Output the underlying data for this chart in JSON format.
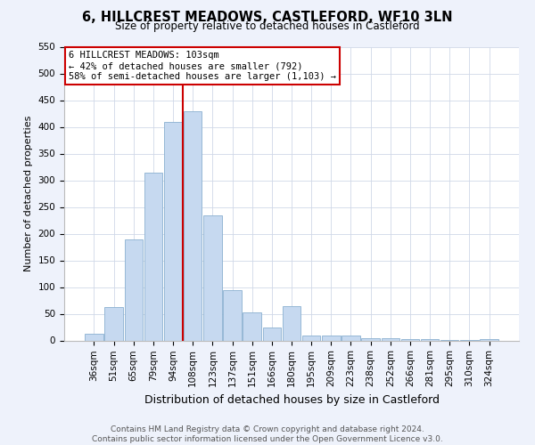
{
  "title": "6, HILLCREST MEADOWS, CASTLEFORD, WF10 3LN",
  "subtitle": "Size of property relative to detached houses in Castleford",
  "xlabel": "Distribution of detached houses by size in Castleford",
  "ylabel": "Number of detached properties",
  "categories": [
    "36sqm",
    "51sqm",
    "65sqm",
    "79sqm",
    "94sqm",
    "108sqm",
    "123sqm",
    "137sqm",
    "151sqm",
    "166sqm",
    "180sqm",
    "195sqm",
    "209sqm",
    "223sqm",
    "238sqm",
    "252sqm",
    "266sqm",
    "281sqm",
    "295sqm",
    "310sqm",
    "324sqm"
  ],
  "values": [
    12,
    62,
    190,
    315,
    410,
    430,
    235,
    95,
    53,
    25,
    65,
    10,
    10,
    10,
    5,
    4,
    3,
    3,
    1,
    1,
    3
  ],
  "bar_color": "#c6d9f0",
  "bar_edge_color": "#8ab0d0",
  "highlight_line_color": "#cc0000",
  "highlight_line_index": 5,
  "annotation_title": "6 HILLCREST MEADOWS: 103sqm",
  "annotation_line1": "← 42% of detached houses are smaller (792)",
  "annotation_line2": "58% of semi-detached houses are larger (1,103) →",
  "annotation_box_facecolor": "#ffffff",
  "annotation_box_edgecolor": "#cc0000",
  "ylim": [
    0,
    550
  ],
  "yticks": [
    0,
    50,
    100,
    150,
    200,
    250,
    300,
    350,
    400,
    450,
    500,
    550
  ],
  "footer_line1": "Contains HM Land Registry data © Crown copyright and database right 2024.",
  "footer_line2": "Contains public sector information licensed under the Open Government Licence v3.0.",
  "background_color": "#eef2fb",
  "plot_bg_color": "#ffffff",
  "grid_color": "#d0d8e8",
  "title_fontsize": 10.5,
  "subtitle_fontsize": 8.5,
  "ylabel_fontsize": 8,
  "xlabel_fontsize": 9,
  "tick_fontsize": 7.5,
  "annotation_fontsize": 7.5,
  "footer_fontsize": 6.5
}
